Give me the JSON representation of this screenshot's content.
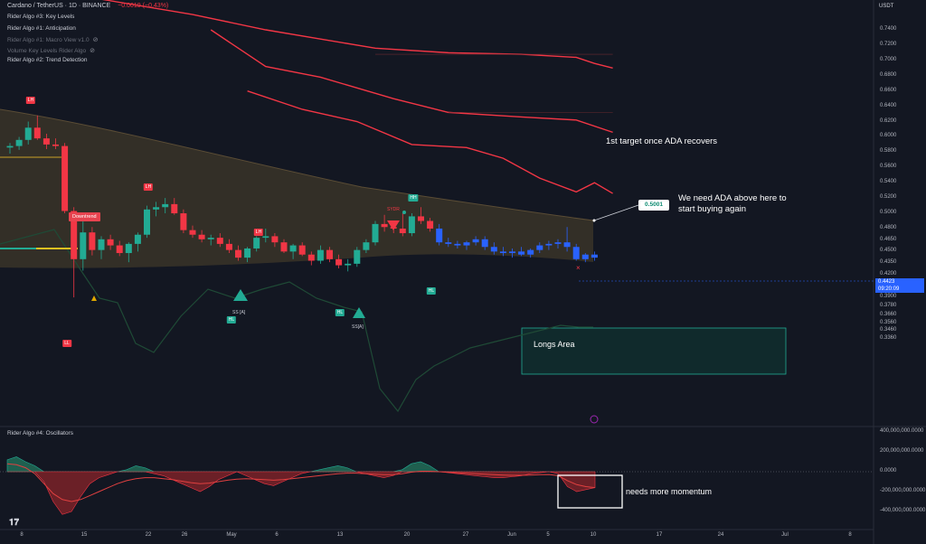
{
  "header": {
    "symbol_title": "Cardano / TetherUS · 1D · BINANCE",
    "change": "−0.0019 (−0.43%)"
  },
  "indicators": [
    {
      "label": "Rider Algo #3: Key Levels"
    },
    {
      "label": "Rider Algo #1: Anticipation"
    },
    {
      "label": "Rider Algo #1: Macro View v1.0"
    },
    {
      "label": "Volume Key Levels Rider Algo"
    },
    {
      "label": "Rider Algo #2: Trend Detection"
    }
  ],
  "oscillator_title": "Rider Algo #4: Oscillators",
  "currency": "USDT",
  "price_axis": [
    "0.7400",
    "0.7200",
    "0.7000",
    "0.6800",
    "0.6600",
    "0.6400",
    "0.6200",
    "0.6000",
    "0.5800",
    "0.5600",
    "0.5400",
    "0.5200",
    "0.5000",
    "0.4800",
    "0.4650",
    "0.4500",
    "0.4350",
    "0.4200",
    "0.4050",
    "0.3900",
    "0.3780",
    "0.3660",
    "0.3560",
    "0.3460",
    "0.3360"
  ],
  "osc_axis": [
    "400,000,000.0000",
    "200,000,000.0000",
    "0.0000",
    "-200,000,000.0000",
    "-400,000,000.0000"
  ],
  "current_price": {
    "price": "0.4423",
    "countdown": "09:20:09"
  },
  "x_axis": [
    "8",
    "15",
    "22",
    "26",
    "May",
    "6",
    "13",
    "20",
    "27",
    "Jun",
    "5",
    "10",
    "17",
    "24",
    "Jul",
    "8"
  ],
  "annotations": {
    "target": "1st target once ADA recovers",
    "need_above_1": "We need ADA above here to",
    "need_above_2": "start buying again",
    "level_value": "0.5001",
    "longs": "Longs Area",
    "momentum": "needs more momentum",
    "downtrend": "Downtrend"
  },
  "tags": {
    "lh1": "LH",
    "lh2": "LH",
    "lh3": "LH",
    "ll": "LL",
    "hl1": "HL",
    "hl2": "HL",
    "hl3": "HL",
    "hh": "HH",
    "ss1": "SS [A]",
    "ss2": "SS[A]",
    "sydr": "SYDR"
  },
  "colors": {
    "bull": "#22ab94",
    "bear": "#f23645",
    "blue": "#2962ff",
    "resistance": "#f23645",
    "cloud": "#6b5a3e",
    "longs_box": "#22ab94"
  },
  "chart_data": {
    "type": "candlestick",
    "title": "Cardano / TetherUS · 1D · BINANCE",
    "x_labels": [
      "8",
      "15",
      "22",
      "26",
      "May",
      "6",
      "13",
      "20",
      "27",
      "Jun",
      "5",
      "10",
      "17",
      "24",
      "Jul",
      "8"
    ],
    "ylim": [
      0.33,
      0.75
    ],
    "candles": [
      {
        "o": 0.586,
        "h": 0.592,
        "l": 0.578,
        "c": 0.588
      },
      {
        "o": 0.588,
        "h": 0.6,
        "l": 0.583,
        "c": 0.596
      },
      {
        "o": 0.596,
        "h": 0.62,
        "l": 0.59,
        "c": 0.612
      },
      {
        "o": 0.612,
        "h": 0.628,
        "l": 0.596,
        "c": 0.598
      },
      {
        "o": 0.598,
        "h": 0.604,
        "l": 0.584,
        "c": 0.59
      },
      {
        "o": 0.59,
        "h": 0.598,
        "l": 0.584,
        "c": 0.588
      },
      {
        "o": 0.588,
        "h": 0.592,
        "l": 0.5,
        "c": 0.503
      },
      {
        "o": 0.503,
        "h": 0.508,
        "l": 0.39,
        "c": 0.44
      },
      {
        "o": 0.44,
        "h": 0.49,
        "l": 0.425,
        "c": 0.475
      },
      {
        "o": 0.475,
        "h": 0.482,
        "l": 0.445,
        "c": 0.452
      },
      {
        "o": 0.452,
        "h": 0.47,
        "l": 0.44,
        "c": 0.466
      },
      {
        "o": 0.466,
        "h": 0.472,
        "l": 0.452,
        "c": 0.458
      },
      {
        "o": 0.458,
        "h": 0.464,
        "l": 0.444,
        "c": 0.448
      },
      {
        "o": 0.448,
        "h": 0.462,
        "l": 0.436,
        "c": 0.46
      },
      {
        "o": 0.46,
        "h": 0.475,
        "l": 0.45,
        "c": 0.472
      },
      {
        "o": 0.472,
        "h": 0.51,
        "l": 0.468,
        "c": 0.505
      },
      {
        "o": 0.505,
        "h": 0.515,
        "l": 0.496,
        "c": 0.508
      },
      {
        "o": 0.508,
        "h": 0.52,
        "l": 0.5,
        "c": 0.512
      },
      {
        "o": 0.512,
        "h": 0.52,
        "l": 0.498,
        "c": 0.5
      },
      {
        "o": 0.5,
        "h": 0.505,
        "l": 0.474,
        "c": 0.478
      },
      {
        "o": 0.478,
        "h": 0.484,
        "l": 0.468,
        "c": 0.472
      },
      {
        "o": 0.472,
        "h": 0.478,
        "l": 0.462,
        "c": 0.466
      },
      {
        "o": 0.466,
        "h": 0.472,
        "l": 0.458,
        "c": 0.468
      },
      {
        "o": 0.468,
        "h": 0.474,
        "l": 0.456,
        "c": 0.46
      },
      {
        "o": 0.46,
        "h": 0.466,
        "l": 0.448,
        "c": 0.452
      },
      {
        "o": 0.452,
        "h": 0.458,
        "l": 0.438,
        "c": 0.442
      },
      {
        "o": 0.442,
        "h": 0.456,
        "l": 0.436,
        "c": 0.454
      },
      {
        "o": 0.454,
        "h": 0.47,
        "l": 0.45,
        "c": 0.468
      },
      {
        "o": 0.468,
        "h": 0.48,
        "l": 0.462,
        "c": 0.47
      },
      {
        "o": 0.47,
        "h": 0.474,
        "l": 0.456,
        "c": 0.462
      },
      {
        "o": 0.462,
        "h": 0.466,
        "l": 0.448,
        "c": 0.45
      },
      {
        "o": 0.45,
        "h": 0.46,
        "l": 0.44,
        "c": 0.458
      },
      {
        "o": 0.458,
        "h": 0.462,
        "l": 0.444,
        "c": 0.446
      },
      {
        "o": 0.446,
        "h": 0.45,
        "l": 0.432,
        "c": 0.438
      },
      {
        "o": 0.438,
        "h": 0.458,
        "l": 0.434,
        "c": 0.452
      },
      {
        "o": 0.452,
        "h": 0.456,
        "l": 0.436,
        "c": 0.44
      },
      {
        "o": 0.44,
        "h": 0.446,
        "l": 0.428,
        "c": 0.432
      },
      {
        "o": 0.432,
        "h": 0.44,
        "l": 0.424,
        "c": 0.434
      },
      {
        "o": 0.434,
        "h": 0.456,
        "l": 0.43,
        "c": 0.452
      },
      {
        "o": 0.452,
        "h": 0.466,
        "l": 0.448,
        "c": 0.462
      },
      {
        "o": 0.462,
        "h": 0.49,
        "l": 0.458,
        "c": 0.486
      },
      {
        "o": 0.486,
        "h": 0.498,
        "l": 0.476,
        "c": 0.482
      },
      {
        "o": 0.482,
        "h": 0.488,
        "l": 0.474,
        "c": 0.48
      },
      {
        "o": 0.48,
        "h": 0.5,
        "l": 0.47,
        "c": 0.474
      },
      {
        "o": 0.474,
        "h": 0.5,
        "l": 0.47,
        "c": 0.496
      },
      {
        "o": 0.496,
        "h": 0.508,
        "l": 0.486,
        "c": 0.49
      },
      {
        "o": 0.49,
        "h": 0.494,
        "l": 0.476,
        "c": 0.48
      },
      {
        "o": 0.48,
        "h": 0.486,
        "l": 0.458,
        "c": 0.462
      },
      {
        "o": 0.462,
        "h": 0.468,
        "l": 0.456,
        "c": 0.46
      },
      {
        "o": 0.46,
        "h": 0.464,
        "l": 0.454,
        "c": 0.458
      },
      {
        "o": 0.458,
        "h": 0.464,
        "l": 0.452,
        "c": 0.462
      },
      {
        "o": 0.462,
        "h": 0.47,
        "l": 0.458,
        "c": 0.466
      },
      {
        "o": 0.466,
        "h": 0.47,
        "l": 0.452,
        "c": 0.456
      },
      {
        "o": 0.456,
        "h": 0.462,
        "l": 0.446,
        "c": 0.45
      },
      {
        "o": 0.45,
        "h": 0.456,
        "l": 0.444,
        "c": 0.448
      },
      {
        "o": 0.448,
        "h": 0.454,
        "l": 0.442,
        "c": 0.45
      },
      {
        "o": 0.45,
        "h": 0.456,
        "l": 0.444,
        "c": 0.446
      },
      {
        "o": 0.446,
        "h": 0.454,
        "l": 0.442,
        "c": 0.452
      },
      {
        "o": 0.452,
        "h": 0.462,
        "l": 0.448,
        "c": 0.458
      },
      {
        "o": 0.458,
        "h": 0.464,
        "l": 0.452,
        "c": 0.46
      },
      {
        "o": 0.46,
        "h": 0.466,
        "l": 0.454,
        "c": 0.462
      },
      {
        "o": 0.462,
        "h": 0.482,
        "l": 0.45,
        "c": 0.456
      },
      {
        "o": 0.456,
        "h": 0.46,
        "l": 0.438,
        "c": 0.44
      },
      {
        "o": 0.44,
        "h": 0.448,
        "l": 0.436,
        "c": 0.446
      },
      {
        "o": 0.446,
        "h": 0.45,
        "l": 0.438,
        "c": 0.442
      }
    ],
    "resistance_lines": [
      [
        [
          0,
          0.8
        ],
        [
          10,
          0.78
        ],
        [
          20,
          0.76
        ],
        [
          28,
          0.74
        ],
        [
          34,
          0.728
        ],
        [
          40,
          0.716
        ],
        [
          48,
          0.71
        ],
        [
          56,
          0.708
        ],
        [
          62,
          0.704
        ],
        [
          64,
          0.696
        ],
        [
          66,
          0.69
        ]
      ],
      [
        [
          22,
          0.74
        ],
        [
          28,
          0.692
        ],
        [
          34,
          0.678
        ],
        [
          42,
          0.65
        ],
        [
          48,
          0.632
        ],
        [
          56,
          0.626
        ],
        [
          62,
          0.622
        ],
        [
          66,
          0.606
        ]
      ],
      [
        [
          26,
          0.66
        ],
        [
          32,
          0.636
        ],
        [
          38,
          0.62
        ],
        [
          44,
          0.59
        ],
        [
          50,
          0.586
        ],
        [
          54,
          0.572
        ],
        [
          58,
          0.546
        ],
        [
          62,
          0.528
        ],
        [
          64,
          0.54
        ],
        [
          66,
          0.526
        ]
      ]
    ],
    "level_0_5001": 0.5001,
    "osc_ylim": [
      -480000000,
      480000000
    ]
  }
}
